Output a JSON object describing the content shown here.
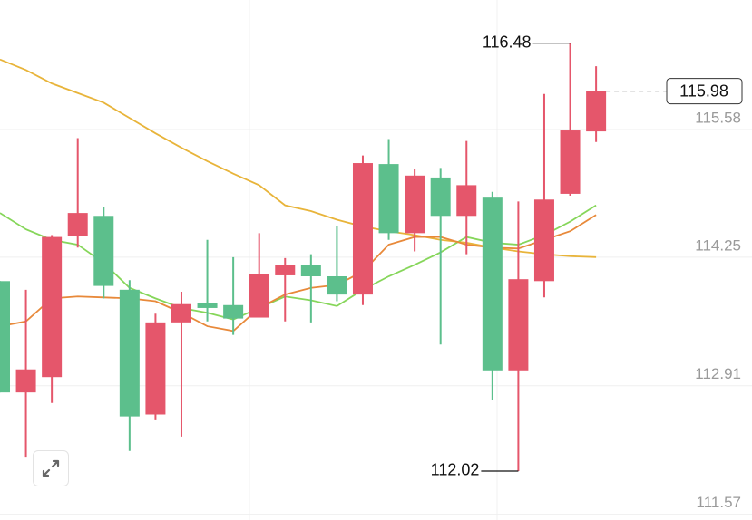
{
  "chart_data": {
    "type": "candlestick",
    "up_color": "#e5566b",
    "down_color": "#5cbf8c",
    "open": [
      114.0,
      112.84,
      113.0,
      114.47,
      114.68,
      113.91,
      112.61,
      113.57,
      113.77,
      113.75,
      113.62,
      114.06,
      114.17,
      114.05,
      113.86,
      115.22,
      114.5,
      115.08,
      114.68,
      114.87,
      113.07,
      114.0,
      114.91,
      115.56
    ],
    "high": [
      114.0,
      113.91,
      114.48,
      115.49,
      114.77,
      114.01,
      113.66,
      113.89,
      114.43,
      114.25,
      114.5,
      114.24,
      114.28,
      114.57,
      115.31,
      115.48,
      115.17,
      115.18,
      115.46,
      114.93,
      114.83,
      115.95,
      116.48,
      116.24
    ],
    "low": [
      112.84,
      112.16,
      112.73,
      114.35,
      113.82,
      112.23,
      112.55,
      112.38,
      113.58,
      113.44,
      113.62,
      113.58,
      113.57,
      113.79,
      113.75,
      114.43,
      114.31,
      113.34,
      114.28,
      112.76,
      112.02,
      113.83,
      114.89,
      115.45
    ],
    "close": [
      112.84,
      113.08,
      114.46,
      114.71,
      113.95,
      112.59,
      113.57,
      113.76,
      113.72,
      113.61,
      114.07,
      114.17,
      114.05,
      113.86,
      115.23,
      114.5,
      115.1,
      114.68,
      115.0,
      113.07,
      114.02,
      114.85,
      115.57,
      115.98
    ],
    "lines": [
      {
        "color": "#e8b43a",
        "values": [
          116.31,
          116.2,
          116.06,
          115.96,
          115.86,
          115.7,
          115.54,
          115.39,
          115.25,
          115.12,
          115.0,
          114.79,
          114.73,
          114.64,
          114.57,
          114.52,
          114.48,
          114.43,
          114.4,
          114.35,
          114.31,
          114.28,
          114.26,
          114.25
        ]
      },
      {
        "color": "#86d65a",
        "values": [
          114.71,
          114.54,
          114.43,
          114.38,
          114.19,
          113.93,
          113.82,
          113.72,
          113.67,
          113.6,
          113.72,
          113.84,
          113.8,
          113.74,
          113.91,
          114.05,
          114.17,
          114.3,
          114.46,
          114.4,
          114.38,
          114.48,
          114.62,
          114.79
        ]
      },
      {
        "color": "#e8893a",
        "values": [
          113.53,
          113.58,
          113.82,
          113.84,
          113.83,
          113.82,
          113.79,
          113.67,
          113.53,
          113.48,
          113.72,
          113.86,
          113.93,
          113.96,
          114.1,
          114.38,
          114.46,
          114.46,
          114.38,
          114.35,
          114.34,
          114.43,
          114.52,
          114.69
        ]
      }
    ],
    "ylim": [
      111.51,
      116.93
    ],
    "yticks": [
      111.57,
      112.91,
      114.25,
      115.58
    ],
    "grid": true
  }
}
